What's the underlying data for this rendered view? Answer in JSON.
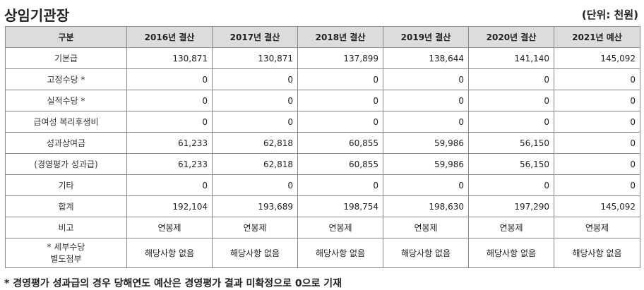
{
  "page": {
    "title": "상임기관장",
    "unit": "(단위: 천원)",
    "footnote": "* 경영평가 성과급의 경우 당해연도 예산은 경영평가 결과 미확정으로 0으로 기재"
  },
  "table": {
    "headers": [
      "구분",
      "2016년 결산",
      "2017년 결산",
      "2018년 결산",
      "2019년 결산",
      "2020년 결산",
      "2021년 예산"
    ],
    "rows": [
      {
        "label": "기본급",
        "values": [
          "130,871",
          "130,871",
          "137,899",
          "138,644",
          "141,140",
          "145,092"
        ]
      },
      {
        "label": "고정수당 *",
        "values": [
          "0",
          "0",
          "0",
          "0",
          "0",
          "0"
        ]
      },
      {
        "label": "실적수당 *",
        "values": [
          "0",
          "0",
          "0",
          "0",
          "0",
          "0"
        ]
      },
      {
        "label": "급여성 복리후생비",
        "values": [
          "0",
          "0",
          "0",
          "0",
          "0",
          "0"
        ]
      },
      {
        "label": "성과상여금",
        "values": [
          "61,233",
          "62,818",
          "60,855",
          "59,986",
          "56,150",
          "0"
        ]
      },
      {
        "label": "(경영평가 성과급)",
        "values": [
          "61,233",
          "62,818",
          "60,855",
          "59,986",
          "56,150",
          "0"
        ]
      },
      {
        "label": "기타",
        "values": [
          "0",
          "0",
          "0",
          "0",
          "0",
          "0"
        ]
      },
      {
        "label": "합계",
        "values": [
          "192,104",
          "193,689",
          "198,754",
          "198,630",
          "197,290",
          "145,092"
        ]
      },
      {
        "label": "비고",
        "values": [
          "연봉제",
          "연봉제",
          "연봉제",
          "연봉제",
          "연봉제",
          "연봉제"
        ]
      }
    ],
    "detail_row": {
      "label_line1": "* 세부수당",
      "label_line2": "별도첨부",
      "values": [
        "해당사항 없음",
        "해당사항 없음",
        "해당사항 없음",
        "해당사항 없음",
        "해당사항 없음",
        "해당사항 없음"
      ]
    }
  }
}
